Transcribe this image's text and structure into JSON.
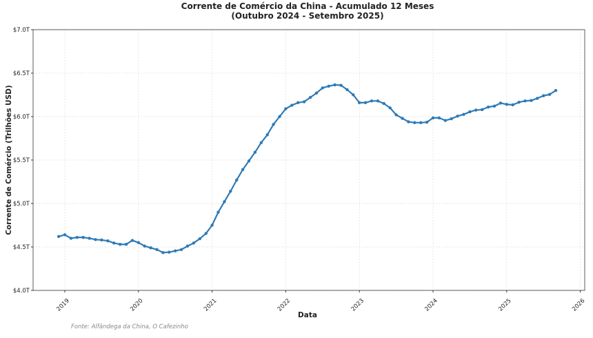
{
  "chart_data": {
    "type": "line",
    "title": "Corrente de Comércio da China - Acumulado 12 Meses",
    "subtitle": "(Outubro 2024 - Setembro 2025)",
    "xlabel": "Data",
    "ylabel": "Corrente de Comércio (Trilhões USD)",
    "source": "Fonte: Alfândega da China, O Cafezinho",
    "ylim": [
      4.0,
      7.0
    ],
    "xlim": [
      "2018-07",
      "2026-02"
    ],
    "y_ticks": [
      {
        "v": 4.0,
        "label": "$4.0T"
      },
      {
        "v": 4.5,
        "label": "$4.5T"
      },
      {
        "v": 5.0,
        "label": "$5.0T"
      },
      {
        "v": 5.5,
        "label": "$5.5T"
      },
      {
        "v": 6.0,
        "label": "$6.0T"
      },
      {
        "v": 6.5,
        "label": "$6.5T"
      },
      {
        "v": 7.0,
        "label": "$7.0T"
      }
    ],
    "x_ticks": [
      "2019",
      "2020",
      "2021",
      "2022",
      "2023",
      "2024",
      "2025",
      "2026"
    ],
    "grid": true,
    "color": "#2e7ab6",
    "x": [
      "2018-12",
      "2019-01",
      "2019-02",
      "2019-03",
      "2019-04",
      "2019-05",
      "2019-06",
      "2019-07",
      "2019-08",
      "2019-09",
      "2019-10",
      "2019-11",
      "2019-12",
      "2020-01",
      "2020-02",
      "2020-03",
      "2020-04",
      "2020-05",
      "2020-06",
      "2020-07",
      "2020-08",
      "2020-09",
      "2020-10",
      "2020-11",
      "2020-12",
      "2021-01",
      "2021-02",
      "2021-03",
      "2021-04",
      "2021-05",
      "2021-06",
      "2021-07",
      "2021-08",
      "2021-09",
      "2021-10",
      "2021-11",
      "2021-12",
      "2022-01",
      "2022-02",
      "2022-03",
      "2022-04",
      "2022-05",
      "2022-06",
      "2022-07",
      "2022-08",
      "2022-09",
      "2022-10",
      "2022-11",
      "2022-12",
      "2023-01",
      "2023-02",
      "2023-03",
      "2023-04",
      "2023-05",
      "2023-06",
      "2023-07",
      "2023-08",
      "2023-09",
      "2023-10",
      "2023-11",
      "2023-12",
      "2024-01",
      "2024-02",
      "2024-03",
      "2024-04",
      "2024-05",
      "2024-06",
      "2024-07",
      "2024-08",
      "2024-09",
      "2024-10",
      "2024-11",
      "2024-12",
      "2025-01",
      "2025-02",
      "2025-03",
      "2025-04",
      "2025-05",
      "2025-06",
      "2025-07",
      "2025-08",
      "2025-09"
    ],
    "y": [
      4.62,
      4.64,
      4.6,
      4.61,
      4.61,
      4.6,
      4.585,
      4.58,
      4.57,
      4.545,
      4.53,
      4.53,
      4.575,
      4.55,
      4.51,
      4.49,
      4.47,
      4.435,
      4.44,
      4.455,
      4.47,
      4.51,
      4.545,
      4.595,
      4.655,
      4.75,
      4.9,
      5.02,
      5.14,
      5.27,
      5.39,
      5.49,
      5.59,
      5.7,
      5.79,
      5.91,
      6.0,
      6.09,
      6.13,
      6.16,
      6.17,
      6.22,
      6.27,
      6.33,
      6.35,
      6.365,
      6.36,
      6.31,
      6.25,
      6.16,
      6.16,
      6.18,
      6.18,
      6.15,
      6.1,
      6.02,
      5.98,
      5.94,
      5.93,
      5.93,
      5.935,
      5.985,
      5.985,
      5.955,
      5.975,
      6.005,
      6.025,
      6.055,
      6.075,
      6.08,
      6.11,
      6.12,
      6.155,
      6.14,
      6.135,
      6.165,
      6.18,
      6.185,
      6.21,
      6.24,
      6.255,
      6.3
    ]
  }
}
